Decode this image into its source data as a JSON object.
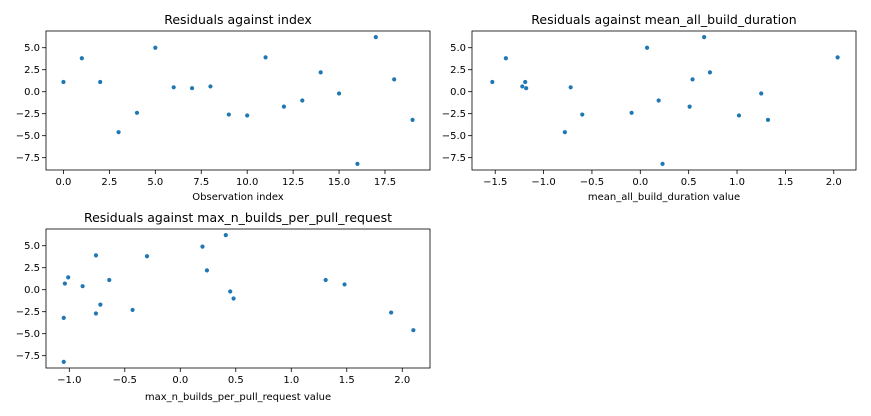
{
  "chart_data": [
    {
      "type": "scatter",
      "title": "Residuals against index",
      "xlabel": "Observation index",
      "ylabel": "",
      "xlim": [
        -0.95,
        19.95
      ],
      "ylim": [
        -8.9,
        6.9
      ],
      "xticks": [
        0.0,
        2.5,
        5.0,
        7.5,
        10.0,
        12.5,
        15.0,
        17.5
      ],
      "xtick_labels": [
        "0.0",
        "2.5",
        "5.0",
        "7.5",
        "10.0",
        "12.5",
        "15.0",
        "17.5"
      ],
      "yticks": [
        -7.5,
        -5.0,
        -2.5,
        0.0,
        2.5,
        5.0
      ],
      "ytick_labels": [
        "−7.5",
        "−5.0",
        "−2.5",
        "0.0",
        "2.5",
        "5.0"
      ],
      "grid": false,
      "color": "#1f77b4",
      "x": [
        0,
        1,
        2,
        3,
        4,
        5,
        6,
        7,
        8,
        9,
        10,
        11,
        12,
        13,
        14,
        15,
        16,
        17,
        18,
        19
      ],
      "y": [
        1.1,
        3.8,
        1.1,
        -4.6,
        -2.4,
        5.0,
        0.5,
        0.4,
        0.6,
        -2.6,
        -2.7,
        3.9,
        -1.7,
        -1.0,
        2.2,
        -0.2,
        -8.2,
        6.2,
        1.4,
        -3.2
      ]
    },
    {
      "type": "scatter",
      "title": "Residuals against mean_all_build_duration",
      "xlabel": "mean_all_build_duration value",
      "ylabel": "",
      "xlim": [
        -1.74,
        2.23
      ],
      "ylim": [
        -8.9,
        6.9
      ],
      "xticks": [
        -1.5,
        -1.0,
        -0.5,
        0.0,
        0.5,
        1.0,
        1.5,
        2.0
      ],
      "xtick_labels": [
        "−1.5",
        "−1.0",
        "−0.5",
        "0.0",
        "0.5",
        "1.0",
        "1.5",
        "2.0"
      ],
      "yticks": [
        -7.5,
        -5.0,
        -2.5,
        0.0,
        2.5,
        5.0
      ],
      "ytick_labels": [
        "−7.5",
        "−5.0",
        "−2.5",
        "0.0",
        "2.5",
        "5.0"
      ],
      "grid": false,
      "color": "#1f77b4",
      "x": [
        -1.53,
        -1.39,
        -1.22,
        -1.19,
        -1.18,
        -0.78,
        -0.72,
        -0.6,
        -0.09,
        0.07,
        0.19,
        0.23,
        0.51,
        0.54,
        0.66,
        0.72,
        1.02,
        1.25,
        1.32,
        2.04
      ],
      "y": [
        1.1,
        3.8,
        0.6,
        1.1,
        0.4,
        -4.6,
        0.5,
        -2.6,
        -2.4,
        5.0,
        -1.0,
        -8.2,
        -1.7,
        1.4,
        6.2,
        2.2,
        -2.7,
        -0.2,
        -3.2,
        3.9
      ]
    },
    {
      "type": "scatter",
      "title": "Residuals against max_n_builds_per_pull_request",
      "xlabel": "max_n_builds_per_pull_request value",
      "ylabel": "",
      "xlim": [
        -1.21,
        2.25
      ],
      "ylim": [
        -8.9,
        6.9
      ],
      "xticks": [
        -1.0,
        -0.5,
        0.0,
        0.5,
        1.0,
        1.5,
        2.0
      ],
      "xtick_labels": [
        "−1.0",
        "−0.5",
        "0.0",
        "0.5",
        "1.0",
        "1.5",
        "2.0"
      ],
      "yticks": [
        -7.5,
        -5.0,
        -2.5,
        0.0,
        2.5,
        5.0
      ],
      "ytick_labels": [
        "−7.5",
        "−5.0",
        "−2.5",
        "0.0",
        "2.5",
        "5.0"
      ],
      "grid": false,
      "color": "#1f77b4",
      "x": [
        -1.05,
        -1.05,
        -1.04,
        -1.01,
        -0.88,
        -0.76,
        -0.76,
        -0.72,
        -0.64,
        -0.43,
        -0.3,
        0.2,
        0.24,
        0.41,
        0.45,
        0.48,
        1.31,
        1.48,
        1.9,
        2.1
      ],
      "y": [
        -8.2,
        -3.2,
        0.7,
        1.4,
        0.4,
        -2.7,
        3.9,
        -1.7,
        1.1,
        -2.3,
        3.8,
        4.9,
        2.2,
        6.2,
        -0.2,
        -1.0,
        1.1,
        0.6,
        -2.6,
        -4.6
      ]
    }
  ]
}
